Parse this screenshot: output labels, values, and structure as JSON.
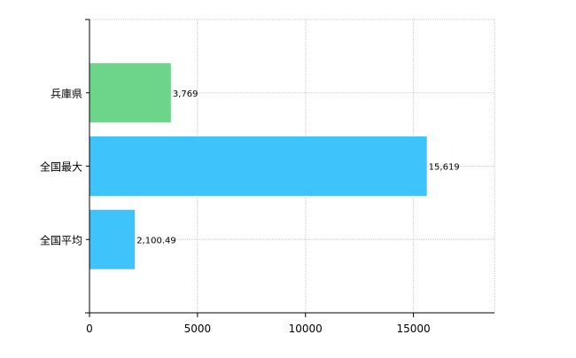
{
  "chart_data": {
    "type": "bar",
    "orientation": "horizontal",
    "categories": [
      "兵庫県",
      "全国最大",
      "全国平均"
    ],
    "values": [
      3769,
      15619,
      2100.49
    ],
    "value_labels": [
      "3,769",
      "15,619",
      "2,100.49"
    ],
    "bar_colors": [
      "#6dd58a",
      "#3ec4fa",
      "#3ec4fa"
    ],
    "xlim": [
      0,
      18750
    ],
    "x_ticks": [
      0,
      5000,
      10000,
      15000
    ],
    "x_tick_labels": [
      "0",
      "5000",
      "10000",
      "15000"
    ],
    "grid": true,
    "title": "",
    "xlabel": "",
    "ylabel": ""
  }
}
